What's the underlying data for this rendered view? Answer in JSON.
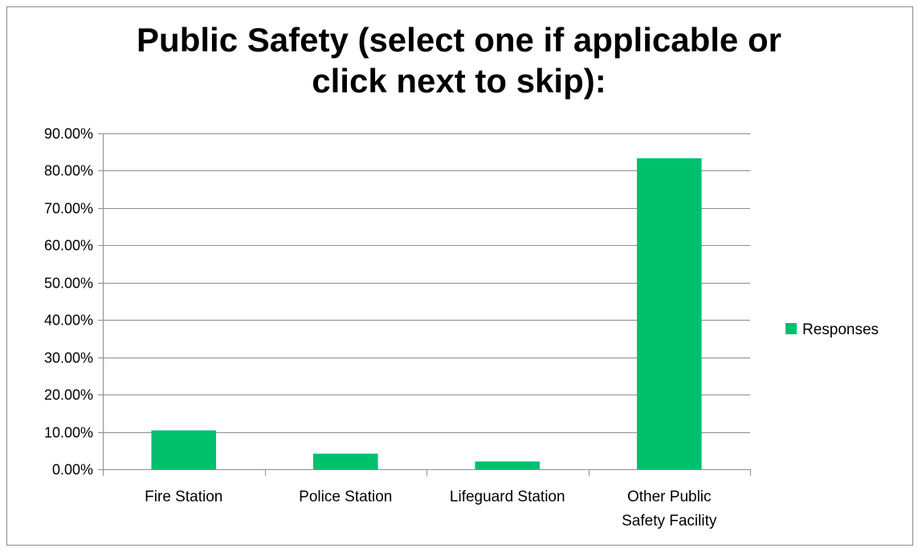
{
  "chart_data": {
    "type": "bar",
    "title_lines": [
      "Public Safety (select one if applicable or",
      "click next to skip):"
    ],
    "categories": [
      [
        "Fire Station"
      ],
      [
        "Police Station"
      ],
      [
        "Lifeguard Station"
      ],
      [
        "Other Public",
        "Safety Facility"
      ]
    ],
    "series": [
      {
        "name": "Responses",
        "values": [
          0.1042,
          0.0417,
          0.0208,
          0.8333
        ],
        "color": "#00c06e"
      }
    ],
    "ylim": [
      0,
      0.9
    ],
    "yticks": [
      0,
      0.1,
      0.2,
      0.3,
      0.4,
      0.5,
      0.6,
      0.7,
      0.8,
      0.9
    ],
    "ytick_labels": [
      "0.00%",
      "10.00%",
      "20.00%",
      "30.00%",
      "40.00%",
      "50.00%",
      "60.00%",
      "70.00%",
      "80.00%",
      "90.00%"
    ],
    "grid": true,
    "legend_position": "right"
  }
}
